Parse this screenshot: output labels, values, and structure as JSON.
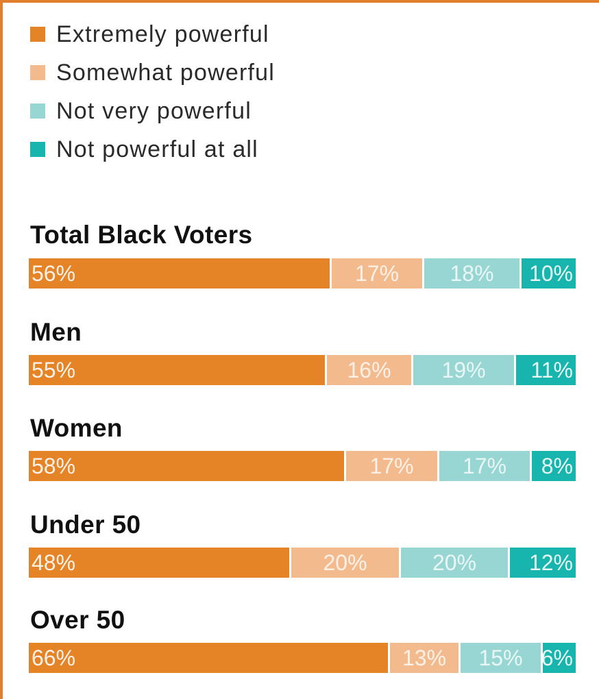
{
  "chart_data": {
    "type": "bar",
    "orientation": "horizontal",
    "stacked": true,
    "legend": [
      {
        "label": "Extremely powerful",
        "color": "#e58427"
      },
      {
        "label": "Somewhat powerful",
        "color": "#f3bb8d"
      },
      {
        "label": "Not very powerful",
        "color": "#97d6d3"
      },
      {
        "label": "Not powerful at all",
        "color": "#17b5ad"
      }
    ],
    "legend_position": "top-left",
    "categories": [
      "Total Black Voters",
      "Men",
      "Women",
      "Under 50",
      "Over 50"
    ],
    "series": [
      {
        "name": "Extremely powerful",
        "values": [
          56,
          55,
          58,
          48,
          66
        ],
        "labels": [
          "56%",
          "55%",
          "58%",
          "48%",
          "66%"
        ]
      },
      {
        "name": "Somewhat powerful",
        "values": [
          17,
          16,
          17,
          20,
          13
        ],
        "labels": [
          "17%",
          "16%",
          "17%",
          "20%",
          "13%"
        ]
      },
      {
        "name": "Not very powerful",
        "values": [
          18,
          19,
          17,
          20,
          15
        ],
        "labels": [
          "18%",
          "19%",
          "17%",
          "20%",
          "15%"
        ]
      },
      {
        "name": "Not powerful at all",
        "values": [
          10,
          11,
          8,
          12,
          6
        ],
        "labels": [
          "10%",
          "11%",
          "8%",
          "12%",
          "6%"
        ]
      }
    ],
    "unit": "%",
    "grid": false
  }
}
